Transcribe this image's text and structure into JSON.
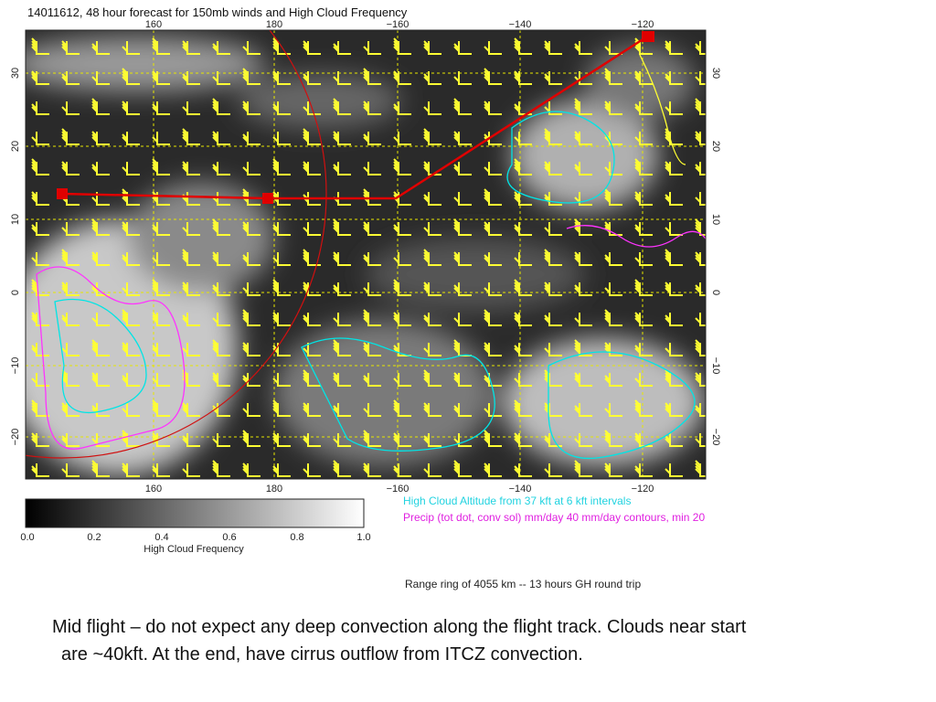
{
  "figure": {
    "title": "14011612, 48 hour forecast for 150mb winds and High Cloud Frequency",
    "lon_ticks": [
      "160",
      "180",
      "−160",
      "−140",
      "−120"
    ],
    "lat_ticks": [
      "30",
      "20",
      "10",
      "0",
      "−10",
      "−20"
    ],
    "colorbar": {
      "ticks": [
        "0.0",
        "0.2",
        "0.4",
        "0.6",
        "0.8",
        "1.0"
      ],
      "label": "High Cloud Frequency"
    },
    "legend": [
      "High Cloud Altitude from 37 kft at 6 kft intervals",
      "Precip (tot dot, conv sol) mm/day 40 mm/day contours, min 20"
    ],
    "range_note": "Range ring of 4055 km -- 13 hours GH round trip"
  },
  "caption": [
    "Mid flight – do not expect any deep convection along the flight track.  Clouds near start",
    "are ~40kft.  At the end, have cirrus outflow from ITCZ convection."
  ]
}
